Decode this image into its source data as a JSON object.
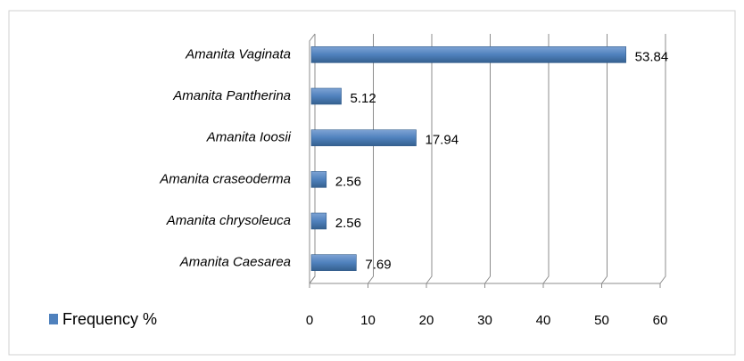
{
  "chart_data": {
    "type": "bar",
    "orientation": "horizontal",
    "categories": [
      "Amanita Vaginata",
      "Amanita Pantherina",
      "Amanita Ioosii",
      "Amanita craseoderma",
      "Amanita chrysoleuca",
      "Amanita Caesarea"
    ],
    "series": [
      {
        "name": "Frequency %",
        "color": "#4f81bd",
        "values": [
          53.84,
          5.12,
          17.94,
          2.56,
          2.56,
          7.69
        ]
      }
    ],
    "xlim": [
      0,
      60
    ],
    "xticks": [
      0,
      10,
      20,
      30,
      40,
      50,
      60
    ],
    "grid": true,
    "legend": "bottom-left"
  }
}
